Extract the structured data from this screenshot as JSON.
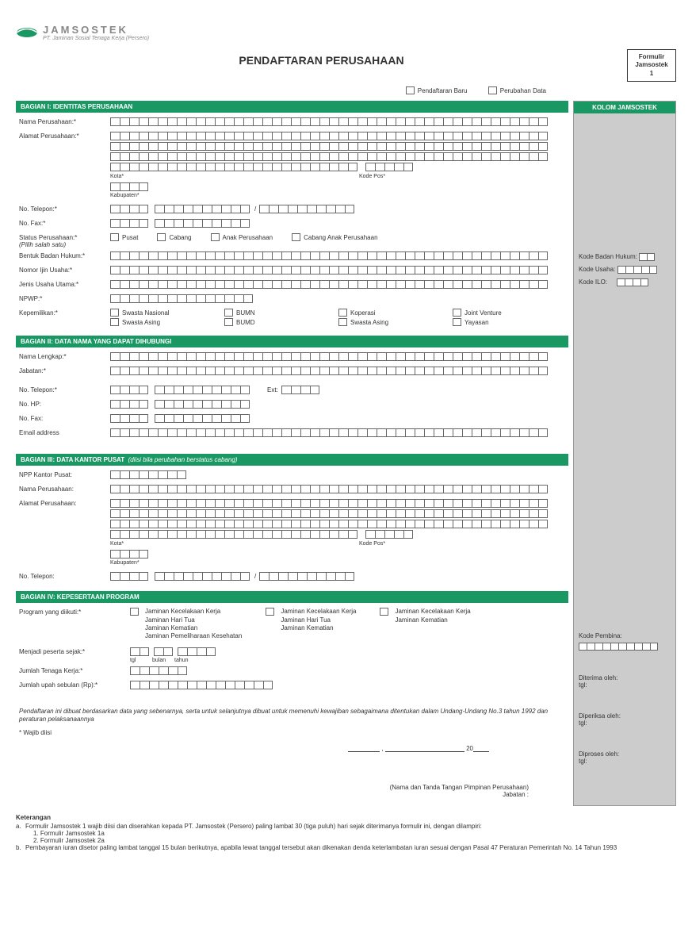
{
  "logo": {
    "name": "JAMSOSTEK",
    "sub": "PT. Jaminan Sosial Tenaga Kerja (Persero)"
  },
  "title": "PENDAFTARAN PERUSAHAAN",
  "badge": {
    "l1": "Formulir",
    "l2": "Jamsostek",
    "l3": "1"
  },
  "top": {
    "c1": "Pendaftaran Baru",
    "c2": "Perubahan Data"
  },
  "s1": {
    "h": "BAGIAN I: IDENTITAS PERUSAHAAN",
    "nama": "Nama Perusahaan:*",
    "alamat": "Alamat Perusahaan:*",
    "kota": "Kota*",
    "kodepos": "Kode Pos*",
    "kab": "Kabupaten*",
    "telp": "No. Telepon:*",
    "fax": "No. Fax:*",
    "status": "Status Perusahaan:*",
    "status2": "(Pilih salah satu)",
    "st": [
      "Pusat",
      "Cabang",
      "Anak Perusahaan",
      "Cabang Anak Perusahaan"
    ],
    "bentuk": "Bentuk Badan Hukum:*",
    "ijin": "Nomor Ijin Usaha:*",
    "jenis": "Jenis Usaha Utama:*",
    "npwp": "NPWP:*",
    "kep": "Kepemilikan:*",
    "kp": [
      "Swasta Nasional",
      "BUMN",
      "Koperasi",
      "Joint Venture",
      "Swasta Asing",
      "BUMD",
      "Swasta Asing",
      "Yayasan"
    ]
  },
  "s2": {
    "h": "BAGIAN II: DATA NAMA YANG DAPAT DIHUBUNGI",
    "nama": "Nama Lengkap:*",
    "jab": "Jabatan:*",
    "telp": "No. Telepon:*",
    "ext": "Ext:",
    "hp": "No. HP:",
    "fax": "No. Fax:",
    "email": "Email address"
  },
  "s3": {
    "h": "BAGIAN III: DATA KANTOR PUSAT",
    "hn": "(diisi bila perubahan berstatus cabang)",
    "npp": "NPP Kantor Pusat:",
    "nama": "Nama Perusahaan:",
    "alamat": "Alamat Perusahaan:",
    "kota": "Kota*",
    "kodepos": "Kode Pos*",
    "kab": "Kabupaten*",
    "telp": "No. Telepon:"
  },
  "s4": {
    "h": "BAGIAN IV: KEPESERTAAN PROGRAM",
    "prog": "Program yang diikuti:*",
    "p1": [
      "Jaminan Kecelakaan Kerja",
      "Jaminan Hari Tua",
      "Jaminan Kematian",
      "Jaminan Pemeliharaan Kesehatan"
    ],
    "p2": [
      "Jaminan Kecelakaan Kerja",
      "Jaminan Hari Tua",
      "Jaminan Kematian"
    ],
    "p3": [
      "Jaminan Kecelakaan Kerja",
      "Jaminan Kematian"
    ],
    "sejak": "Menjadi peserta sejak:*",
    "tgl": "tgl",
    "bulan": "bulan",
    "tahun": "tahun",
    "tk": "Jumlah Tenaga Kerja:*",
    "upah": "Jumlah upah sebulan (Rp):*"
  },
  "declare": "Pendaftaran ini dibuat berdasarkan data yang sebenarnya, serta untuk selanjutnya dibuat untuk memenuhi kewajiban sebagaimana ditentukan dalam Undang-Undang No.3 tahun 1992 dan peraturan pelaksanaannya",
  "req": "* Wajib diisi",
  "sig": {
    "l1": "(Nama dan Tanda Tangan Pimpinan Perusahaan)",
    "l2": "Jabatan :"
  },
  "footer": {
    "ket": "Keterangan",
    "a": "Formulir Jamsostek 1 wajib diisi dan diserahkan kepada PT. Jamsostek (Persero) paling lambat 30 (tiga puluh) hari sejak diterimanya formulir ini, dengan dilampiri:",
    "a1": "1. Formulir Jamsostek 1a",
    "a2": "2. Formulir Jamsostek 2a",
    "b": "Pembayaran iuran disetor paling lambat tanggal 15 bulan berikutnya, apabila lewat tanggal tersebut akan dikenakan denda keterlambatan iuran sesuai dengan Pasal 47 Peraturan Pemerintah No. 14 Tahun 1993"
  },
  "side": {
    "h": "KOLOM JAMSOSTEK",
    "kbh": "Kode Badan Hukum:",
    "ku": "Kode Usaha:",
    "ki": "Kode ILO:",
    "kp": "Kode Pembina:",
    "d": "Diterima oleh:",
    "tgl": "tgl:",
    "p": "Diperiksa oleh:",
    "pr": "Diproses oleh:"
  },
  "colors": {
    "green": "#1a9864",
    "grey": "#ccc"
  }
}
